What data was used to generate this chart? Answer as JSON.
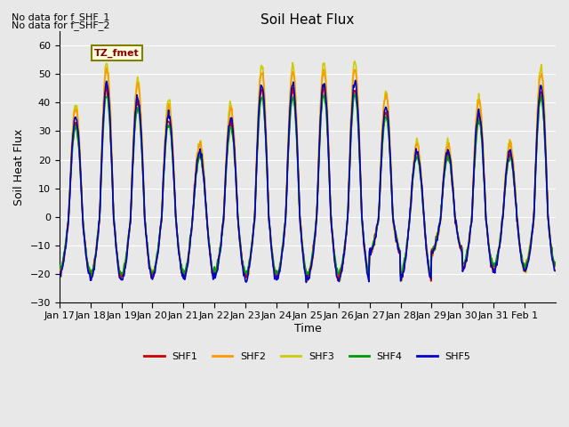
{
  "title": "Soil Heat Flux",
  "ylabel": "Soil Heat Flux",
  "xlabel": "Time",
  "ylim": [
    -30,
    65
  ],
  "yticks": [
    -30,
    -20,
    -10,
    0,
    10,
    20,
    30,
    40,
    50,
    60
  ],
  "colors": {
    "SHF1": "#cc0000",
    "SHF2": "#ff9900",
    "SHF3": "#cccc00",
    "SHF4": "#009900",
    "SHF5": "#0000cc"
  },
  "linewidth": 1.2,
  "text_no_data_1": "No data for f_SHF_1",
  "text_no_data_2": "No data for f_SHF_2",
  "tz_label": "TZ_fmet",
  "bg_color": "#e8e8e8",
  "plot_bg_color": "#e8e8e8",
  "n_days": 16,
  "xtick_labels": [
    "Jan 17",
    "Jan 18",
    "Jan 19",
    "Jan 20",
    "Jan 21",
    "Jan 22",
    "Jan 23",
    "Jan 24",
    "Jan 25",
    "Jan 26",
    "Jan 27",
    "Jan 28",
    "Jan 29",
    "Jan 30",
    "Jan 31",
    "Feb 1"
  ],
  "xtick_pos": [
    0,
    1,
    2,
    3,
    4,
    5,
    6,
    7,
    8,
    9,
    10,
    11,
    12,
    13,
    14,
    15
  ],
  "day_amps": [
    33,
    45,
    40,
    34,
    22,
    33,
    44,
    44,
    45,
    45,
    37,
    22,
    22,
    35,
    22,
    44
  ],
  "night_amps": [
    20,
    21,
    21,
    20,
    21,
    20,
    21,
    21,
    21,
    21,
    12,
    21,
    12,
    18,
    18,
    18
  ],
  "legend_entries": [
    "SHF1",
    "SHF2",
    "SHF3",
    "SHF4",
    "SHF5"
  ]
}
